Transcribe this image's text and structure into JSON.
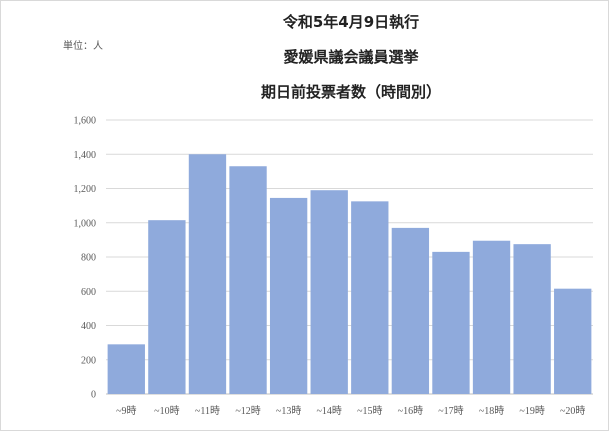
{
  "chart_data": {
    "type": "bar",
    "title": [
      "令和5年4月9日執行",
      "愛媛県議会議員選挙",
      "期日前投票者数（時間別）"
    ],
    "unit_label": "単位：人",
    "categories": [
      "~9時",
      "~10時",
      "~11時",
      "~12時",
      "~13時",
      "~14時",
      "~15時",
      "~16時",
      "~17時",
      "~18時",
      "~19時",
      "~20時"
    ],
    "values": [
      290,
      1015,
      1400,
      1330,
      1145,
      1190,
      1125,
      970,
      830,
      895,
      875,
      615
    ],
    "ylim": [
      0,
      1600
    ],
    "yticks": [
      0,
      200,
      400,
      600,
      800,
      1000,
      1200,
      1400,
      1600
    ],
    "ytick_labels": [
      "0",
      "200",
      "400",
      "600",
      "800",
      "1,000",
      "1,200",
      "1,400",
      "1,600"
    ],
    "grid": true,
    "legend": "none",
    "bar_color": "#8faadc"
  }
}
